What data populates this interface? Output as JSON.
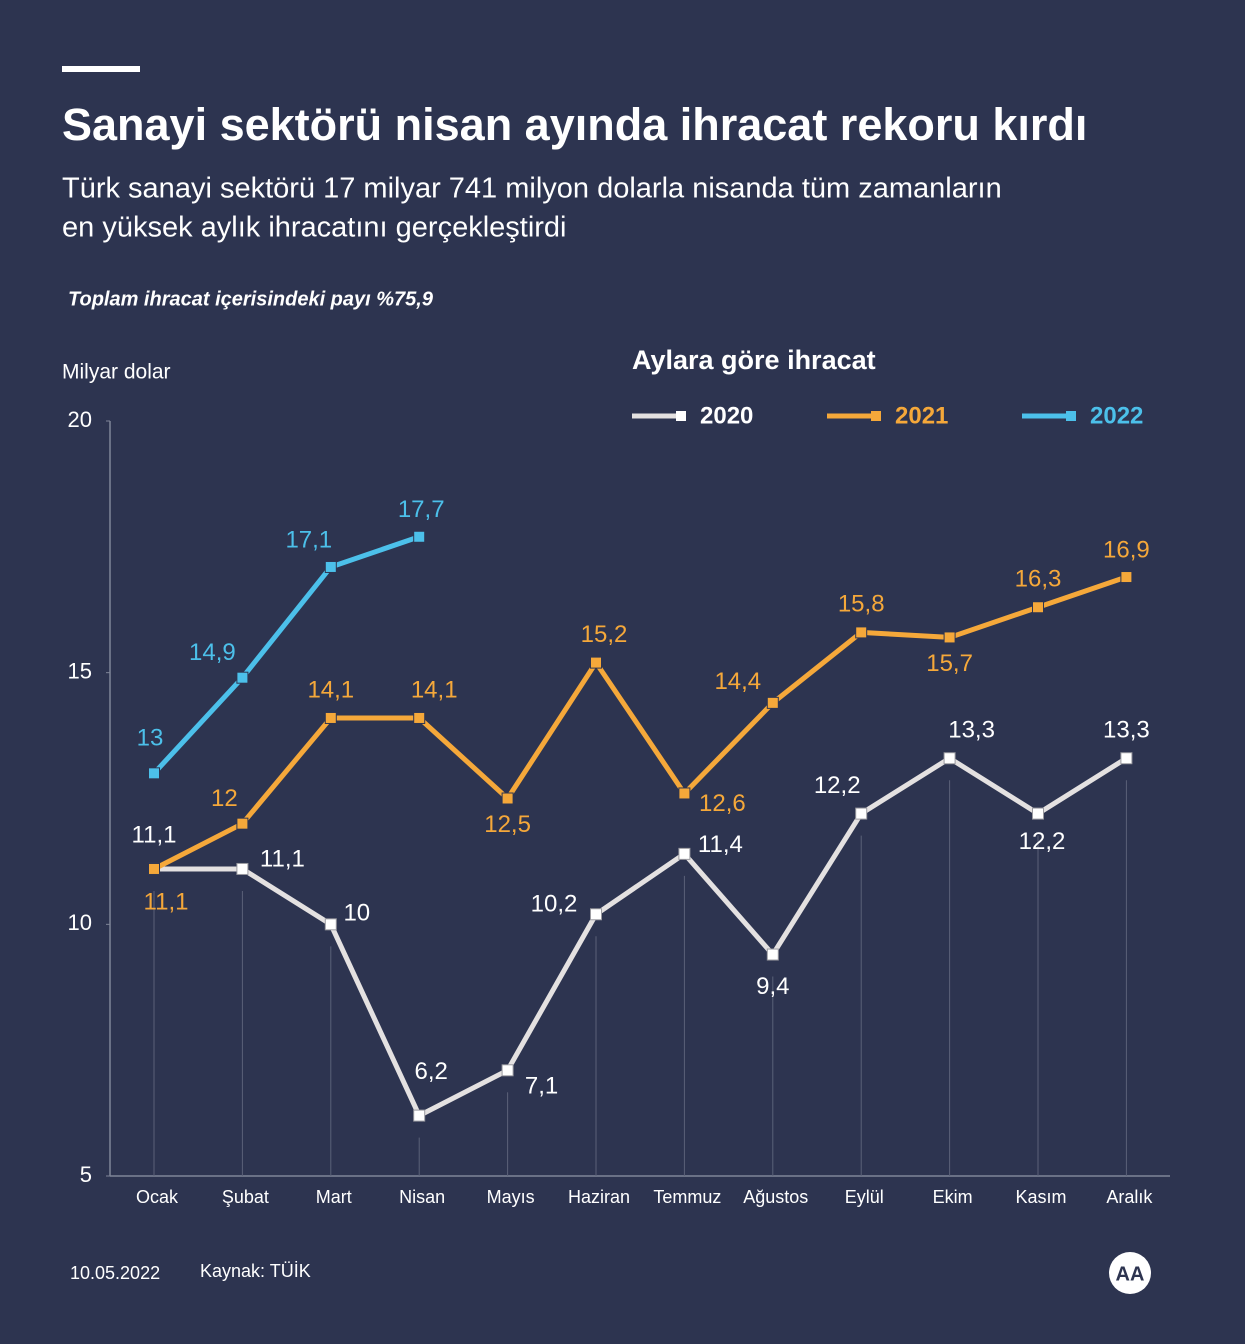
{
  "chart_data": {
    "type": "line",
    "title": "Sanayi sektörü nisan ayında ihracat rekoru kırdı",
    "subtitle": [
      "Türk sanayi sektörü 17 milyar 741 milyon dolarla nisanda tüm zamanların",
      "en yüksek aylık ihracatını gerçekleştirdi"
    ],
    "note": "Toplam ihracat içerisindeki payı %75,9",
    "legend_title": "Aylara göre ihracat",
    "y_label": "Milyar dolar",
    "categories": [
      "Ocak",
      "Şubat",
      "Mart",
      "Nisan",
      "Mayıs",
      "Haziran",
      "Temmuz",
      "Ağustos",
      "Eylül",
      "Ekim",
      "Kasım",
      "Aralık"
    ],
    "series": [
      {
        "name": "2020",
        "color": "#e4e1e1",
        "values": [
          11.1,
          11.1,
          10,
          6.2,
          7.1,
          10.2,
          11.4,
          9.4,
          12.2,
          13.3,
          12.2,
          13.3
        ],
        "value_labels": [
          "11,1",
          "11,1",
          "10",
          "6,2",
          "7,1",
          "10,2",
          "11,4",
          "9,4",
          "12,2",
          "13,3",
          "12,2",
          "13,3"
        ]
      },
      {
        "name": "2021",
        "color": "#f5a83a",
        "values": [
          11.1,
          12,
          14.1,
          14.1,
          12.5,
          15.2,
          12.6,
          14.4,
          15.8,
          15.7,
          16.3,
          16.9
        ],
        "value_labels": [
          "11,1",
          "12",
          "14,1",
          "14,1",
          "12,5",
          "15,2",
          "12,6",
          "14,4",
          "15,8",
          "15,7",
          "16,3",
          "16,9"
        ]
      },
      {
        "name": "2022",
        "color": "#4cc0ea",
        "values": [
          13,
          14.9,
          17.1,
          17.7,
          null,
          null,
          null,
          null,
          null,
          null,
          null,
          null
        ],
        "value_labels": [
          "13",
          "14,9",
          "17,1",
          "17,7",
          null,
          null,
          null,
          null,
          null,
          null,
          null,
          null
        ]
      }
    ],
    "ylim": [
      5,
      20
    ],
    "yticks": [
      5,
      10,
      15,
      20
    ],
    "date": "10.05.2022",
    "source": "Kaynak: TÜİK",
    "logo": "AA"
  }
}
